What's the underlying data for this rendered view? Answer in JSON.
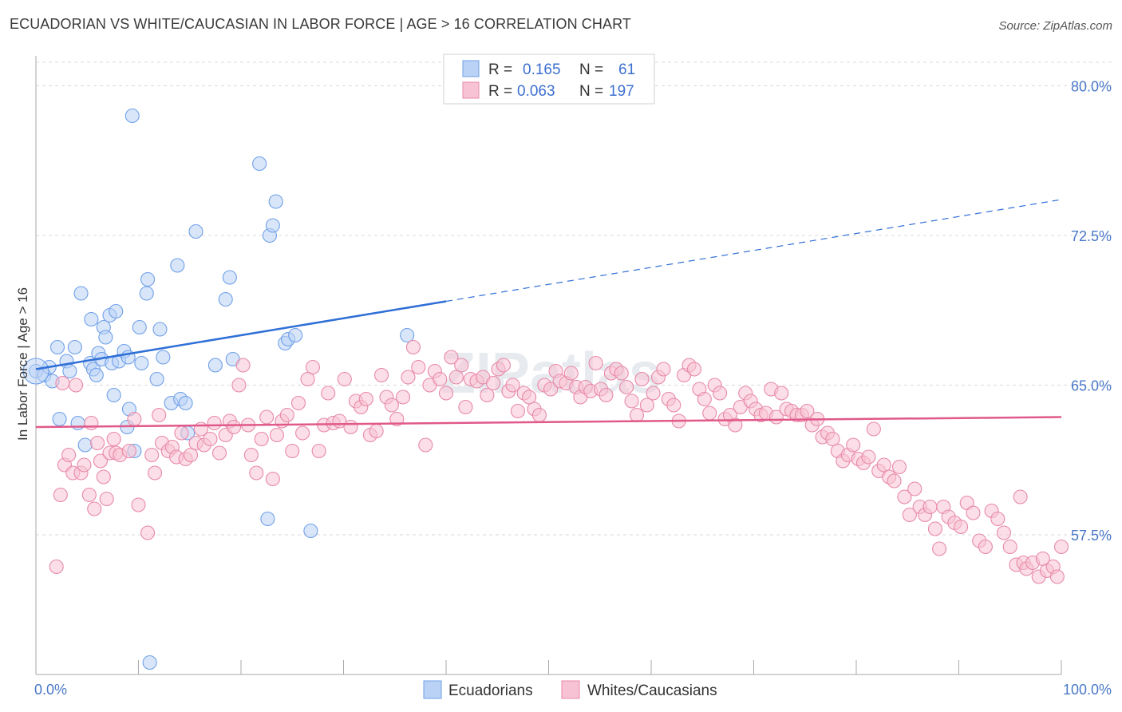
{
  "title": "ECUADORIAN VS WHITE/CAUCASIAN IN LABOR FORCE | AGE > 16 CORRELATION CHART",
  "source": "Source: ZipAtlas.com",
  "chart_data": {
    "type": "scatter",
    "ylabel": "In Labor Force | Age > 16",
    "xlim": [
      0,
      100
    ],
    "ylim": [
      50.5,
      81.5
    ],
    "x_tick_labels": [
      "0.0%",
      "100.0%"
    ],
    "y_ticks": [
      57.5,
      65.0,
      72.5,
      80.0
    ],
    "y_tick_labels": [
      "57.5%",
      "65.0%",
      "72.5%",
      "80.0%"
    ],
    "grid": true,
    "watermark": "ZIPatlas",
    "legend_top": [
      {
        "r_label": "R =",
        "r": "0.165",
        "n_label": "N =",
        "n": "61"
      },
      {
        "r_label": "R =",
        "r": "0.063",
        "n_label": "N =",
        "n": "197"
      }
    ],
    "series": [
      {
        "name": "Ecuadorians",
        "color": "#6fa0e8",
        "fill": "#b9d2f5",
        "trend": {
          "x0": 0,
          "y0": 65.8,
          "x1": 40,
          "y1": 69.2,
          "dash_to_x": 100,
          "dash_to_y": 74.3
        },
        "points": [
          [
            0,
            65.7
          ],
          [
            0.8,
            65.5
          ],
          [
            1.3,
            65.9
          ],
          [
            1.6,
            65.2
          ],
          [
            2.1,
            66.9
          ],
          [
            2.3,
            63.3
          ],
          [
            3.0,
            66.2
          ],
          [
            3.3,
            65.7
          ],
          [
            3.8,
            66.9
          ],
          [
            4.1,
            63.1
          ],
          [
            4.4,
            69.6
          ],
          [
            4.8,
            62.0
          ],
          [
            5.3,
            66.1
          ],
          [
            5.4,
            68.3
          ],
          [
            5.6,
            65.8
          ],
          [
            5.9,
            65.5
          ],
          [
            6.1,
            66.6
          ],
          [
            6.4,
            66.3
          ],
          [
            6.6,
            67.9
          ],
          [
            6.8,
            67.4
          ],
          [
            7.2,
            68.5
          ],
          [
            7.4,
            66.1
          ],
          [
            7.6,
            64.5
          ],
          [
            7.8,
            68.7
          ],
          [
            8.1,
            66.2
          ],
          [
            8.6,
            66.7
          ],
          [
            8.9,
            62.9
          ],
          [
            9.0,
            66.4
          ],
          [
            9.1,
            63.8
          ],
          [
            9.6,
            61.7
          ],
          [
            9.4,
            78.5
          ],
          [
            10.1,
            67.9
          ],
          [
            10.3,
            66.1
          ],
          [
            10.8,
            69.6
          ],
          [
            10.9,
            70.3
          ],
          [
            11.8,
            65.3
          ],
          [
            12.1,
            67.8
          ],
          [
            12.4,
            66.4
          ],
          [
            13.2,
            64.1
          ],
          [
            13.8,
            71.0
          ],
          [
            14.1,
            64.3
          ],
          [
            14.8,
            62.6
          ],
          [
            14.6,
            64.1
          ],
          [
            15.6,
            72.7
          ],
          [
            17.5,
            66.0
          ],
          [
            18.5,
            69.3
          ],
          [
            18.9,
            70.4
          ],
          [
            19.2,
            66.3
          ],
          [
            21.8,
            76.1
          ],
          [
            22.6,
            58.3
          ],
          [
            22.8,
            72.5
          ],
          [
            23.1,
            73.0
          ],
          [
            23.4,
            74.2
          ],
          [
            24.3,
            67.1
          ],
          [
            24.6,
            67.3
          ],
          [
            25.3,
            67.5
          ],
          [
            26.8,
            57.7
          ],
          [
            36.2,
            67.5
          ],
          [
            11.1,
            51.1
          ]
        ]
      },
      {
        "name": "Whites/Caucasians",
        "color": "#e889a8",
        "fill": "#f7c3d4",
        "trend": {
          "x0": 0,
          "y0": 62.9,
          "x1": 100,
          "y1": 63.4
        },
        "points": [
          [
            2.0,
            55.9
          ],
          [
            2.4,
            59.5
          ],
          [
            2.6,
            65.1
          ],
          [
            2.8,
            61.0
          ],
          [
            3.2,
            61.5
          ],
          [
            3.6,
            60.6
          ],
          [
            3.9,
            65.0
          ],
          [
            4.4,
            60.6
          ],
          [
            4.7,
            61.0
          ],
          [
            5.2,
            59.5
          ],
          [
            5.4,
            63.1
          ],
          [
            5.7,
            58.8
          ],
          [
            6.0,
            62.1
          ],
          [
            6.3,
            61.2
          ],
          [
            6.6,
            60.4
          ],
          [
            6.9,
            59.3
          ],
          [
            7.2,
            61.6
          ],
          [
            7.6,
            62.3
          ],
          [
            7.8,
            61.6
          ],
          [
            8.2,
            61.5
          ],
          [
            9.1,
            61.7
          ],
          [
            9.6,
            63.3
          ],
          [
            10.0,
            59.0
          ],
          [
            10.9,
            57.6
          ],
          [
            11.3,
            61.5
          ],
          [
            11.6,
            60.6
          ],
          [
            12.0,
            63.5
          ],
          [
            12.3,
            62.1
          ],
          [
            12.9,
            61.7
          ],
          [
            13.3,
            61.9
          ],
          [
            13.7,
            61.4
          ],
          [
            14.2,
            62.6
          ],
          [
            14.6,
            61.3
          ],
          [
            15.1,
            61.5
          ],
          [
            15.6,
            62.1
          ],
          [
            16.1,
            62.8
          ],
          [
            16.4,
            62.0
          ],
          [
            17.0,
            62.3
          ],
          [
            17.4,
            63.1
          ],
          [
            17.9,
            61.6
          ],
          [
            18.5,
            62.5
          ],
          [
            18.9,
            63.2
          ],
          [
            19.3,
            62.9
          ],
          [
            19.8,
            65.0
          ],
          [
            20.2,
            66.0
          ],
          [
            20.7,
            63.0
          ],
          [
            21.0,
            61.5
          ],
          [
            21.5,
            60.6
          ],
          [
            22.0,
            62.3
          ],
          [
            22.5,
            63.4
          ],
          [
            23.1,
            60.3
          ],
          [
            23.5,
            62.5
          ],
          [
            24.0,
            63.2
          ],
          [
            24.5,
            63.5
          ],
          [
            25.0,
            61.7
          ],
          [
            25.6,
            64.1
          ],
          [
            26.0,
            62.6
          ],
          [
            26.5,
            65.3
          ],
          [
            27.0,
            65.9
          ],
          [
            27.6,
            61.7
          ],
          [
            28.1,
            63.0
          ],
          [
            28.5,
            64.6
          ],
          [
            29.0,
            63.1
          ],
          [
            29.6,
            63.2
          ],
          [
            30.1,
            65.3
          ],
          [
            30.7,
            62.9
          ],
          [
            31.2,
            64.2
          ],
          [
            31.7,
            63.9
          ],
          [
            32.2,
            64.3
          ],
          [
            32.6,
            62.5
          ],
          [
            33.2,
            62.7
          ],
          [
            33.7,
            65.5
          ],
          [
            34.2,
            64.4
          ],
          [
            34.7,
            64.0
          ],
          [
            35.2,
            63.3
          ],
          [
            35.8,
            64.4
          ],
          [
            36.3,
            65.4
          ],
          [
            36.8,
            66.9
          ],
          [
            37.3,
            65.9
          ],
          [
            38.0,
            62.0
          ],
          [
            38.4,
            65.0
          ],
          [
            38.9,
            65.7
          ],
          [
            39.4,
            65.3
          ],
          [
            40.0,
            64.6
          ],
          [
            40.5,
            66.4
          ],
          [
            41.0,
            65.4
          ],
          [
            41.5,
            66.0
          ],
          [
            41.9,
            63.9
          ],
          [
            42.4,
            65.3
          ],
          [
            43.0,
            65.2
          ],
          [
            43.6,
            65.4
          ],
          [
            44.0,
            64.5
          ],
          [
            44.6,
            65.1
          ],
          [
            45.1,
            65.8
          ],
          [
            45.6,
            66.0
          ],
          [
            46.1,
            64.7
          ],
          [
            46.5,
            65.0
          ],
          [
            47.0,
            63.7
          ],
          [
            47.6,
            64.6
          ],
          [
            48.1,
            64.4
          ],
          [
            48.6,
            63.8
          ],
          [
            49.1,
            63.5
          ],
          [
            49.6,
            65.0
          ],
          [
            50.2,
            64.8
          ],
          [
            50.7,
            65.7
          ],
          [
            51.1,
            65.2
          ],
          [
            51.7,
            65.1
          ],
          [
            52.2,
            65.6
          ],
          [
            52.7,
            64.9
          ],
          [
            53.1,
            64.4
          ],
          [
            53.6,
            64.9
          ],
          [
            54.1,
            64.7
          ],
          [
            54.6,
            66.1
          ],
          [
            55.1,
            64.8
          ],
          [
            55.6,
            64.5
          ],
          [
            56.1,
            65.6
          ],
          [
            56.6,
            65.8
          ],
          [
            57.1,
            65.6
          ],
          [
            57.6,
            64.9
          ],
          [
            58.1,
            64.2
          ],
          [
            58.6,
            63.5
          ],
          [
            59.1,
            65.3
          ],
          [
            59.6,
            64.0
          ],
          [
            60.2,
            64.6
          ],
          [
            60.7,
            65.4
          ],
          [
            61.2,
            65.8
          ],
          [
            61.7,
            64.3
          ],
          [
            62.2,
            64.0
          ],
          [
            62.7,
            63.2
          ],
          [
            63.2,
            65.5
          ],
          [
            63.7,
            66.0
          ],
          [
            64.2,
            65.8
          ],
          [
            64.7,
            64.8
          ],
          [
            65.2,
            64.3
          ],
          [
            65.7,
            63.6
          ],
          [
            66.2,
            65.0
          ],
          [
            66.7,
            64.6
          ],
          [
            67.2,
            63.3
          ],
          [
            67.7,
            63.5
          ],
          [
            68.2,
            63.0
          ],
          [
            68.7,
            63.9
          ],
          [
            69.2,
            64.6
          ],
          [
            69.7,
            64.2
          ],
          [
            70.2,
            63.8
          ],
          [
            70.7,
            63.5
          ],
          [
            71.2,
            63.6
          ],
          [
            71.7,
            64.8
          ],
          [
            72.2,
            63.4
          ],
          [
            72.7,
            64.6
          ],
          [
            73.2,
            63.8
          ],
          [
            73.7,
            63.7
          ],
          [
            74.2,
            63.5
          ],
          [
            74.7,
            63.5
          ],
          [
            75.2,
            63.7
          ],
          [
            75.7,
            63.0
          ],
          [
            76.2,
            63.3
          ],
          [
            76.7,
            62.4
          ],
          [
            77.2,
            62.6
          ],
          [
            77.7,
            62.3
          ],
          [
            78.2,
            61.7
          ],
          [
            78.7,
            61.2
          ],
          [
            79.2,
            61.5
          ],
          [
            79.7,
            62.0
          ],
          [
            80.2,
            61.3
          ],
          [
            80.7,
            61.1
          ],
          [
            81.2,
            61.4
          ],
          [
            81.7,
            62.8
          ],
          [
            82.2,
            60.7
          ],
          [
            82.7,
            61.0
          ],
          [
            83.2,
            60.4
          ],
          [
            83.7,
            60.2
          ],
          [
            84.2,
            60.9
          ],
          [
            84.7,
            59.4
          ],
          [
            85.2,
            58.5
          ],
          [
            85.7,
            59.8
          ],
          [
            86.2,
            58.9
          ],
          [
            86.7,
            58.5
          ],
          [
            87.2,
            58.9
          ],
          [
            87.7,
            57.8
          ],
          [
            88.1,
            56.8
          ],
          [
            88.5,
            58.9
          ],
          [
            89.0,
            58.4
          ],
          [
            89.6,
            58.1
          ],
          [
            90.2,
            57.9
          ],
          [
            90.8,
            59.1
          ],
          [
            91.4,
            58.6
          ],
          [
            92.0,
            57.2
          ],
          [
            92.6,
            56.9
          ],
          [
            93.2,
            58.7
          ],
          [
            93.8,
            58.3
          ],
          [
            94.4,
            57.6
          ],
          [
            95.0,
            56.9
          ],
          [
            95.6,
            56.0
          ],
          [
            96.0,
            59.4
          ],
          [
            96.3,
            56.1
          ],
          [
            96.6,
            55.8
          ],
          [
            97.2,
            56.1
          ],
          [
            97.8,
            55.4
          ],
          [
            98.2,
            56.3
          ],
          [
            98.6,
            55.7
          ],
          [
            99.2,
            55.9
          ],
          [
            99.6,
            55.4
          ],
          [
            100.0,
            56.9
          ]
        ]
      }
    ]
  }
}
